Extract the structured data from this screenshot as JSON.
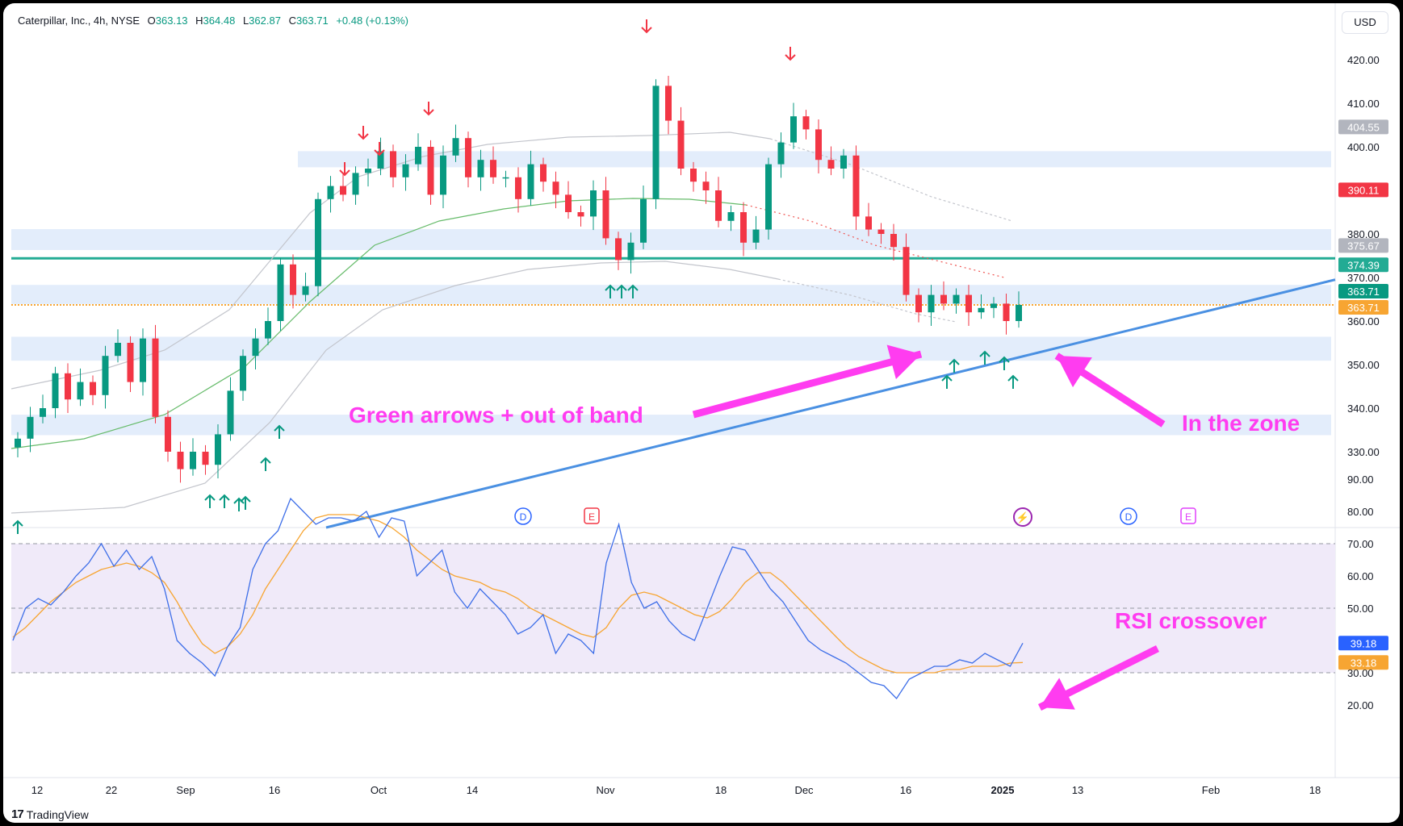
{
  "header": {
    "symbol": "Caterpillar, Inc., 4h, NYSE",
    "o_label": "O",
    "o": "363.13",
    "h_label": "H",
    "h": "364.48",
    "l_label": "L",
    "l": "362.87",
    "c_label": "C",
    "c": "363.71",
    "change": "+0.48 (+0.13%)"
  },
  "currency": "USD",
  "brand": "TradingView",
  "annotations": {
    "green_arrows": "Green arrows + out of band",
    "in_zone": "In the zone",
    "rsi_crossover": "RSI crossover"
  },
  "colors": {
    "bull": "#089981",
    "bear": "#f23645",
    "annotation": "#ff3cf0",
    "trendline": "#4a90e2",
    "zone": "#e3edfb",
    "rsi": "#3d6ee8",
    "rsi_ma": "#f7a532",
    "rsi_band": "#f0eaf9"
  },
  "chart_data": [
    {
      "type": "candlestick",
      "title": "Caterpillar, Inc., 4h, NYSE",
      "x_ticks": [
        "12",
        "22",
        "Sep",
        "16",
        "Oct",
        "14",
        "Nov",
        "18",
        "Dec",
        "16",
        "2025",
        "13",
        "Feb",
        "18"
      ],
      "y_ticks": [
        330,
        340,
        350,
        360,
        370,
        380,
        390,
        400,
        410,
        420
      ],
      "ylim": [
        322,
        427
      ],
      "price_labels": [
        {
          "value": 404.55,
          "text": "404.55",
          "color": "#b2b5be"
        },
        {
          "value": 390.11,
          "text": "390.11",
          "color": "#f23645"
        },
        {
          "value": 375.67,
          "text": "375.67",
          "color": "#b2b5be"
        },
        {
          "value": 374.39,
          "text": "374.39",
          "color": "#22ab94"
        },
        {
          "value": 363.71,
          "text": "363.71",
          "color": "#089981"
        },
        {
          "value": 363.71,
          "text": "363.71",
          "color": "#f7a532"
        }
      ],
      "horizontal_lines": [
        {
          "value": 374.39,
          "color": "#22ab94"
        },
        {
          "value": 363.71,
          "color": "#f7a532",
          "style": "dotted"
        }
      ],
      "zones": [
        [
          395.3,
          399.0
        ],
        [
          376.3,
          381.1
        ],
        [
          363.9,
          368.3
        ],
        [
          350.9,
          356.4
        ],
        [
          333.8,
          338.5
        ]
      ],
      "event_markers": [
        "D",
        "E",
        "D",
        "E"
      ],
      "series": [
        {
          "type": "candles",
          "close_path": [
            333,
            338,
            340,
            348,
            342,
            346,
            343,
            352,
            355,
            346,
            356,
            338,
            330,
            326,
            330,
            327,
            334,
            344,
            352,
            356,
            360,
            373,
            366,
            368,
            388,
            391,
            389,
            394,
            395,
            399,
            393,
            396,
            400,
            389,
            398,
            402,
            393,
            397,
            393,
            393,
            388,
            396,
            392,
            389,
            385,
            384,
            390,
            379,
            374,
            378,
            388,
            414,
            406,
            395,
            392,
            390,
            383,
            385,
            378,
            381,
            396,
            401,
            407,
            404,
            397,
            395,
            398,
            384,
            381,
            380,
            377,
            366,
            362,
            366,
            364,
            366,
            362,
            363,
            364,
            360,
            363.71
          ]
        }
      ]
    },
    {
      "type": "line",
      "title": "RSI",
      "y_ticks": [
        20,
        30,
        40,
        50,
        60,
        70,
        80,
        90
      ],
      "ylim": [
        15,
        92
      ],
      "band": [
        30,
        70
      ],
      "values_labels": [
        {
          "value": 39.18,
          "text": "39.18",
          "color": "#2962ff"
        },
        {
          "value": 33.18,
          "text": "33.18",
          "color": "#f7a532"
        }
      ],
      "series": [
        {
          "values": [
            40,
            50,
            53,
            51,
            55,
            60,
            64,
            70,
            63,
            68,
            62,
            66,
            56,
            40,
            36,
            33,
            29,
            38,
            44,
            62,
            70,
            74,
            84,
            80,
            76,
            78,
            78,
            77,
            80,
            72,
            78,
            77,
            60,
            64,
            68,
            55,
            50,
            56,
            52,
            48,
            42,
            44,
            48,
            36,
            42,
            40,
            36,
            64,
            76,
            58,
            50,
            52,
            46,
            42,
            40,
            50,
            60,
            69,
            68,
            62,
            56,
            52,
            46,
            40,
            37,
            35,
            33,
            30,
            27,
            26,
            22,
            28,
            30,
            32,
            32,
            34,
            33,
            36,
            34,
            32,
            39.18
          ]
        },
        {
          "values": [
            41,
            44,
            48,
            52,
            55,
            58,
            60,
            62,
            63,
            64,
            63,
            61,
            58,
            52,
            45,
            39,
            36,
            38,
            42,
            48,
            56,
            62,
            68,
            74,
            78,
            79,
            79,
            79,
            78,
            77,
            75,
            72,
            68,
            65,
            62,
            60,
            59,
            58,
            56,
            55,
            53,
            50,
            48,
            46,
            44,
            42,
            41,
            44,
            50,
            54,
            55,
            54,
            52,
            50,
            48,
            47,
            49,
            53,
            58,
            61,
            61,
            58,
            54,
            50,
            46,
            42,
            38,
            35,
            33,
            31,
            30,
            30,
            30,
            30,
            31,
            31,
            32,
            32,
            32,
            33,
            33.18
          ]
        }
      ]
    }
  ]
}
